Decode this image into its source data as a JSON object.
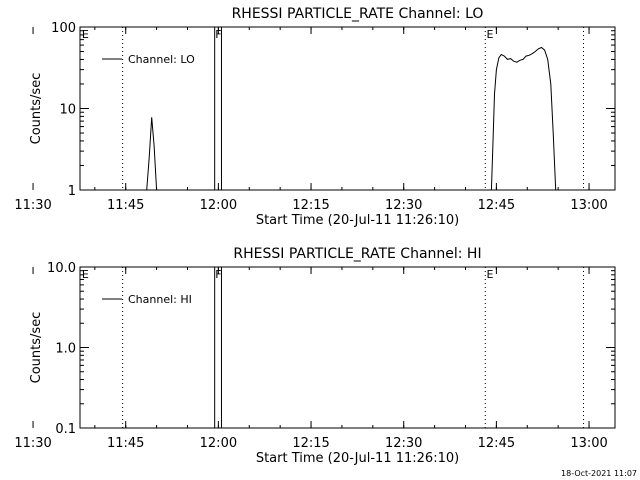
{
  "chart_data": [
    {
      "type": "line",
      "title": "RHESSI PARTICLE_RATE Channel: LO",
      "xlabel": "Start Time (20-Jul-11 11:26:10)",
      "ylabel": "Counts/sec",
      "y_scale": "log",
      "ylim": [
        1,
        100
      ],
      "y_ticks": [
        {
          "v": 1,
          "label": "1"
        },
        {
          "v": 10,
          "label": "10"
        },
        {
          "v": 100,
          "label": "100"
        }
      ],
      "xlim_minutes": [
        11.6,
        98.2
      ],
      "x_ticks": [
        {
          "m": 4,
          "label": "11:30"
        },
        {
          "m": 19,
          "label": "11:45"
        },
        {
          "m": 34,
          "label": "12:00"
        },
        {
          "m": 49,
          "label": "12:15"
        },
        {
          "m": 64,
          "label": "12:30"
        },
        {
          "m": 79,
          "label": "12:45"
        },
        {
          "m": 94,
          "label": "13:00"
        }
      ],
      "legend": "Channel: LO",
      "legend_position": "top-left",
      "event_lines": [
        {
          "m": 18.5,
          "style": "dotted"
        },
        {
          "m": 33.4,
          "style": "solid"
        },
        {
          "m": 34.5,
          "style": "solid"
        },
        {
          "m": 77.2,
          "style": "dotted"
        },
        {
          "m": 93.1,
          "style": "dotted"
        }
      ],
      "event_markers": [
        {
          "m": 11.9,
          "label": "E"
        },
        {
          "m": 33.5,
          "label": "F"
        },
        {
          "m": 77.4,
          "label": "E"
        }
      ],
      "series": [
        {
          "segments": [
            [
              [
                22.4,
                1.0
              ],
              [
                22.8,
                2.5
              ],
              [
                23.2,
                7.8
              ],
              [
                23.6,
                3.5
              ],
              [
                24.0,
                1.0
              ]
            ],
            [
              [
                78.2,
                1.0
              ],
              [
                78.4,
                3.0
              ],
              [
                78.7,
                15
              ],
              [
                79.0,
                30
              ],
              [
                79.4,
                42
              ],
              [
                79.8,
                46
              ],
              [
                80.3,
                44
              ],
              [
                80.8,
                40
              ],
              [
                81.3,
                41
              ],
              [
                81.8,
                38
              ],
              [
                82.3,
                37
              ],
              [
                82.8,
                39
              ],
              [
                83.3,
                40
              ],
              [
                83.8,
                44
              ],
              [
                84.3,
                45
              ],
              [
                84.8,
                47
              ],
              [
                85.3,
                50
              ],
              [
                85.8,
                54
              ],
              [
                86.3,
                56
              ],
              [
                86.8,
                52
              ],
              [
                87.3,
                40
              ],
              [
                87.8,
                20
              ],
              [
                88.2,
                5
              ],
              [
                88.6,
                1.0
              ]
            ]
          ]
        }
      ]
    },
    {
      "type": "line",
      "title": "RHESSI PARTICLE_RATE Channel: HI",
      "xlabel": "Start Time (20-Jul-11 11:26:10)",
      "ylabel": "Counts/sec",
      "y_scale": "log",
      "ylim": [
        0.1,
        10
      ],
      "y_ticks": [
        {
          "v": 0.1,
          "label": "0.1"
        },
        {
          "v": 1,
          "label": "1.0"
        },
        {
          "v": 10,
          "label": "10.0"
        }
      ],
      "xlim_minutes": [
        11.6,
        98.2
      ],
      "x_ticks": [
        {
          "m": 4,
          "label": "11:30"
        },
        {
          "m": 19,
          "label": "11:45"
        },
        {
          "m": 34,
          "label": "12:00"
        },
        {
          "m": 49,
          "label": "12:15"
        },
        {
          "m": 64,
          "label": "12:30"
        },
        {
          "m": 79,
          "label": "12:45"
        },
        {
          "m": 94,
          "label": "13:00"
        }
      ],
      "legend": "Channel: HI",
      "legend_position": "top-left",
      "event_lines": [
        {
          "m": 18.5,
          "style": "dotted"
        },
        {
          "m": 33.4,
          "style": "solid"
        },
        {
          "m": 34.5,
          "style": "solid"
        },
        {
          "m": 77.2,
          "style": "dotted"
        },
        {
          "m": 93.1,
          "style": "dotted"
        }
      ],
      "event_markers": [
        {
          "m": 11.9,
          "label": "E"
        },
        {
          "m": 33.5,
          "label": "F"
        },
        {
          "m": 77.4,
          "label": "E"
        }
      ],
      "series": []
    }
  ],
  "footer": {
    "timestamp": "18-Oct-2021 11:07"
  }
}
